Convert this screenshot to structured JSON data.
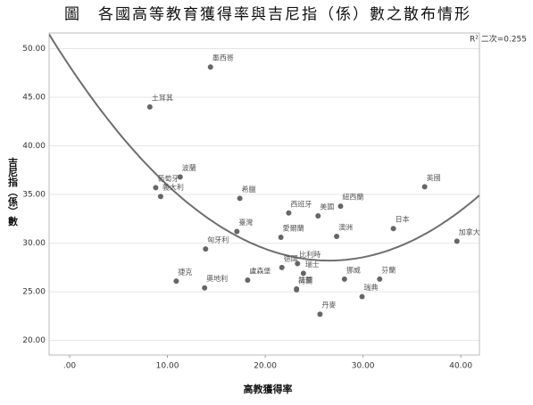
{
  "chart_data": {
    "type": "scatter",
    "title": "圖　各國高等教育獲得率與吉尼指（係）數之散布情形",
    "x_label": "高教獲得率",
    "y_label": "吉尼指（係）數",
    "annotation": "R² 二次=0.255",
    "labels": [
      "墨西哥",
      "土耳其",
      "波蘭",
      "葡萄牙",
      "義大利",
      "希臘",
      "臺灣",
      "西班牙",
      "紐西蘭",
      "美國",
      "愛爾蘭",
      "澳洲",
      "日本",
      "英國",
      "加拿大",
      "匈牙利",
      "捷克",
      "奧地利",
      "盧森堡",
      "德國",
      "比利時",
      "瑞士",
      "法國",
      "荷蘭",
      "挪威",
      "芬蘭",
      "瑞典",
      "丹麥"
    ],
    "x": [
      14.4,
      8.2,
      11.3,
      8.8,
      9.3,
      17.4,
      17.1,
      22.4,
      27.7,
      25.4,
      21.6,
      27.3,
      33.1,
      36.3,
      39.6,
      13.9,
      10.9,
      13.8,
      18.2,
      21.7,
      23.3,
      23.9,
      23.2,
      23.2,
      28.1,
      31.7,
      29.9,
      25.6
    ],
    "values": [
      48.1,
      44.0,
      36.8,
      35.7,
      34.8,
      34.6,
      31.2,
      33.1,
      33.8,
      32.8,
      30.6,
      30.7,
      31.5,
      35.8,
      30.2,
      29.4,
      26.1,
      25.4,
      26.2,
      27.5,
      27.9,
      26.9,
      25.3,
      25.2,
      26.3,
      26.3,
      24.5,
      22.7
    ],
    "color": "#666666",
    "fit_color": "#6e6e6e",
    "xlim": [
      -2.1,
      41.9
    ],
    "xticks": [
      {
        "value": 0,
        "label": ".00"
      },
      {
        "value": 10,
        "label": "10.00"
      },
      {
        "value": 20,
        "label": "20.00"
      },
      {
        "value": 30,
        "label": "30.00"
      },
      {
        "value": 40,
        "label": "40.00"
      }
    ],
    "ylim": [
      18.5,
      51.6
    ],
    "yticks": [
      {
        "value": 20,
        "label": "20.00"
      },
      {
        "value": 25,
        "label": "25.00"
      },
      {
        "value": 30,
        "label": "30.00"
      },
      {
        "value": 35,
        "label": "35.00"
      },
      {
        "value": 40,
        "label": "40.00"
      },
      {
        "value": 45,
        "label": "45.00"
      },
      {
        "value": 50,
        "label": "50.00"
      }
    ],
    "grid": true
  }
}
